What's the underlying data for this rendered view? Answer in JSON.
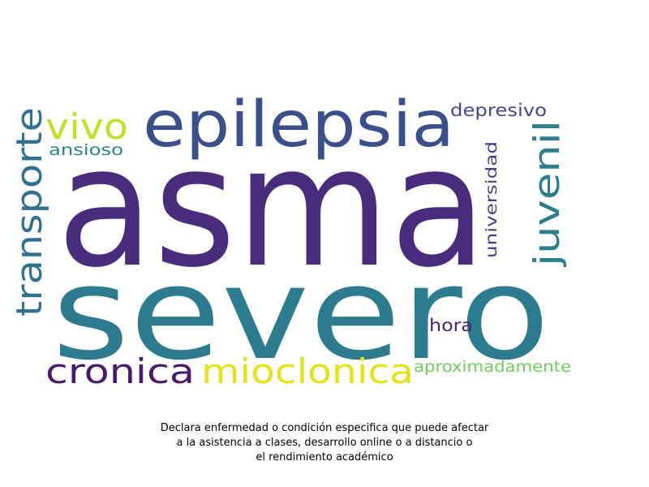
{
  "words": [
    {
      "id": "asma",
      "text": "asma",
      "color": "#472d7b"
    },
    {
      "id": "severo",
      "text": "severo",
      "color": "#2c7b8e"
    },
    {
      "id": "epilepsia",
      "text": "epilepsia",
      "color": "#3b4f8a"
    },
    {
      "id": "transporte",
      "text": "transporte",
      "color": "#2f7190"
    },
    {
      "id": "vivo",
      "text": "vivo",
      "color": "#c0df25"
    },
    {
      "id": "juvenil",
      "text": "juvenil",
      "color": "#2a7e8e"
    },
    {
      "id": "cronica",
      "text": "cronica",
      "color": "#481a6c"
    },
    {
      "id": "mioclonica",
      "text": "mioclonica",
      "color": "#e2e418"
    },
    {
      "id": "depresivo",
      "text": "depresivo",
      "color": "#3e4a89"
    },
    {
      "id": "ansioso",
      "text": "ansioso",
      "color": "#25858e"
    },
    {
      "id": "universidad",
      "text": "universidad",
      "color": "#414287"
    },
    {
      "id": "hora",
      "text": "hora",
      "color": "#482475"
    },
    {
      "id": "aproximadamente",
      "text": "aproximadamente",
      "color": "#6ccd5a"
    }
  ],
  "caption": {
    "line1": "Declara enfermedad o condición especifica que puede afectar",
    "line2": "a la asistencia a clases, desarrollo online o a distancio o",
    "line3": "el rendimiento académico"
  }
}
